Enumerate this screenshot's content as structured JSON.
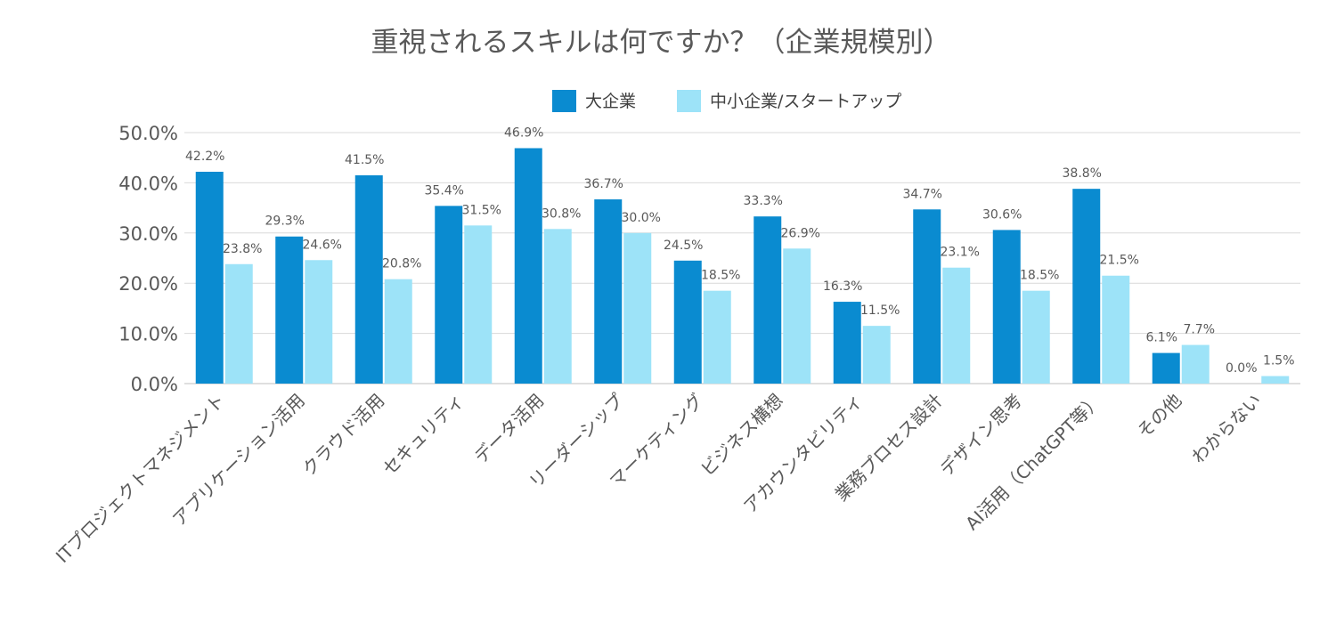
{
  "chart_data": {
    "type": "bar",
    "title": "重視されるスキルは何ですか？（企業規模別）",
    "xlabel": "",
    "ylabel": "",
    "ylim": [
      0,
      50
    ],
    "yticks": [
      "0.0%",
      "10.0%",
      "20.0%",
      "30.0%",
      "40.0%",
      "50.0%"
    ],
    "legend_position": "top-center",
    "grid": true,
    "categories": [
      "ITプロジェクトマネジメント",
      "アプリケーション活用",
      "クラウド活用",
      "セキュリティ",
      "データ活用",
      "リーダーシップ",
      "マーケティング",
      "ビジネス構想",
      "アカウンタビリティ",
      "業務プロセス設計",
      "デザイン思考",
      "AI活用（ChatGPT等）",
      "その他",
      "わからない"
    ],
    "series": [
      {
        "name": "大企業",
        "color": "#0a8bd0",
        "values": [
          42.2,
          29.3,
          41.5,
          35.4,
          46.9,
          36.7,
          24.5,
          33.3,
          16.3,
          34.7,
          30.6,
          38.8,
          6.1,
          0.0
        ],
        "labels": [
          "42.2%",
          "29.3%",
          "41.5%",
          "35.4%",
          "46.9%",
          "36.7%",
          "24.5%",
          "33.3%",
          "16.3%",
          "34.7%",
          "30.6%",
          "38.8%",
          "6.1%",
          "0.0%"
        ]
      },
      {
        "name": "中小企業/スタートアップ",
        "color": "#9de3f8",
        "values": [
          23.8,
          24.6,
          20.8,
          31.5,
          30.8,
          30.0,
          18.5,
          26.9,
          11.5,
          23.1,
          18.5,
          21.5,
          7.7,
          1.5
        ],
        "labels": [
          "23.8%",
          "24.6%",
          "20.8%",
          "31.5%",
          "30.8%",
          "30.0%",
          "18.5%",
          "26.9%",
          "11.5%",
          "23.1%",
          "18.5%",
          "21.5%",
          "7.7%",
          "1.5%"
        ]
      }
    ]
  }
}
